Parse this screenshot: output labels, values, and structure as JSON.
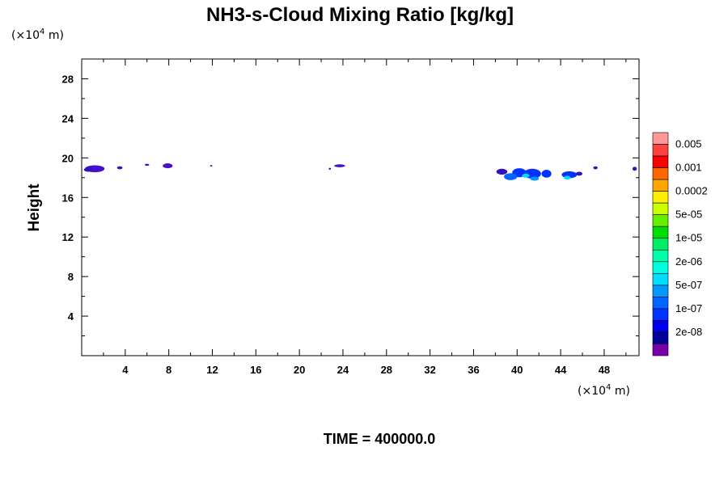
{
  "chart_data": {
    "type": "contour",
    "title": "NH3-s-Cloud Mixing Ratio [kg/kg]",
    "ylabel": "Height",
    "xlabel": "",
    "x_unit": {
      "prefix": "(×10",
      "exp": "4",
      "suffix": " m)"
    },
    "y_unit": {
      "prefix": "(×10",
      "exp": "4",
      "suffix": " m)"
    },
    "xlim": [
      0,
      51.2
    ],
    "ylim": [
      0,
      30
    ],
    "x_ticks": [
      4,
      8,
      12,
      16,
      20,
      24,
      28,
      32,
      36,
      40,
      44,
      48
    ],
    "x_tick_labels": [
      "4",
      "8",
      "12",
      "16",
      "20",
      "24",
      "28",
      "32",
      "36",
      "40",
      "44",
      "48"
    ],
    "y_ticks": [
      4,
      8,
      12,
      16,
      20,
      24,
      28
    ],
    "y_tick_labels": [
      "4",
      "8",
      "12",
      "16",
      "20",
      "24",
      "28"
    ],
    "x_minor_step": 2,
    "y_minor_step": 2,
    "colorbar": {
      "levels": [
        "0.005",
        "0.001",
        "0.0002",
        "5e-05",
        "1e-05",
        "2e-06",
        "5e-07",
        "1e-07",
        "2e-08"
      ],
      "colors_top_to_bottom": [
        "#ff9999",
        "#ff4040",
        "#ff0000",
        "#ff6600",
        "#ffa500",
        "#ffee00",
        "#ccff00",
        "#66ee00",
        "#00dd00",
        "#00ee66",
        "#00ffaa",
        "#00ffdd",
        "#00ddff",
        "#0099ff",
        "#0066ff",
        "#0033ff",
        "#0000ee",
        "#000099",
        "#7700aa"
      ]
    },
    "cloud_patches": [
      {
        "x": 1.2,
        "y": 18.9,
        "w": 1.8,
        "h": 0.7,
        "color": "#4411cc"
      },
      {
        "x": 0.6,
        "y": 18.8,
        "w": 0.8,
        "h": 0.4,
        "color": "#3311bb"
      },
      {
        "x": 3.5,
        "y": 19.0,
        "w": 0.5,
        "h": 0.3,
        "color": "#3311bb"
      },
      {
        "x": 6.0,
        "y": 19.3,
        "w": 0.4,
        "h": 0.2,
        "color": "#3311bb"
      },
      {
        "x": 7.9,
        "y": 19.2,
        "w": 0.9,
        "h": 0.5,
        "color": "#4411cc"
      },
      {
        "x": 11.9,
        "y": 19.2,
        "w": 0.2,
        "h": 0.1,
        "color": "#3311bb"
      },
      {
        "x": 22.8,
        "y": 18.9,
        "w": 0.2,
        "h": 0.2,
        "color": "#3311bb"
      },
      {
        "x": 23.7,
        "y": 19.2,
        "w": 1.0,
        "h": 0.3,
        "color": "#4411cc"
      },
      {
        "x": 38.6,
        "y": 18.6,
        "w": 1.0,
        "h": 0.6,
        "color": "#3311bb"
      },
      {
        "x": 40.2,
        "y": 18.5,
        "w": 1.3,
        "h": 0.9,
        "color": "#0033ff"
      },
      {
        "x": 41.4,
        "y": 18.4,
        "w": 1.6,
        "h": 1.0,
        "color": "#0033ff"
      },
      {
        "x": 40.8,
        "y": 18.2,
        "w": 0.7,
        "h": 0.4,
        "color": "#00ddff"
      },
      {
        "x": 39.4,
        "y": 18.1,
        "w": 1.2,
        "h": 0.7,
        "color": "#0066ff"
      },
      {
        "x": 41.6,
        "y": 17.9,
        "w": 0.8,
        "h": 0.4,
        "color": "#0099ff"
      },
      {
        "x": 42.7,
        "y": 18.4,
        "w": 0.9,
        "h": 0.8,
        "color": "#0033ff"
      },
      {
        "x": 44.8,
        "y": 18.3,
        "w": 1.4,
        "h": 0.7,
        "color": "#0033ff"
      },
      {
        "x": 44.6,
        "y": 18.0,
        "w": 0.6,
        "h": 0.4,
        "color": "#00ddff"
      },
      {
        "x": 45.7,
        "y": 18.4,
        "w": 0.6,
        "h": 0.4,
        "color": "#3311bb"
      },
      {
        "x": 47.2,
        "y": 19.0,
        "w": 0.4,
        "h": 0.3,
        "color": "#3311bb"
      },
      {
        "x": 50.8,
        "y": 18.9,
        "w": 0.4,
        "h": 0.4,
        "color": "#3311bb"
      }
    ]
  },
  "time_label": "TIME = 400000.0"
}
